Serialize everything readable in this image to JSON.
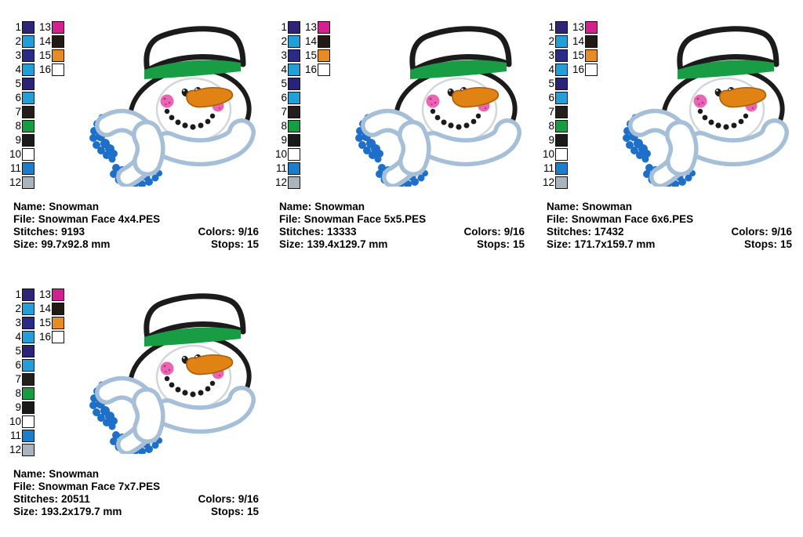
{
  "labels": {
    "name": "Name:",
    "file": "File:",
    "stitches": "Stitches:",
    "colors": "Colors:",
    "size": "Size:",
    "stops": "Stops:"
  },
  "palette": {
    "items": [
      {
        "num": "1",
        "color": "#2e2478"
      },
      {
        "num": "2",
        "color": "#219fd9"
      },
      {
        "num": "3",
        "color": "#2a2a87"
      },
      {
        "num": "4",
        "color": "#219fd9"
      },
      {
        "num": "5",
        "color": "#2b2377"
      },
      {
        "num": "6",
        "color": "#219fd9"
      },
      {
        "num": "7",
        "color": "#241f1a"
      },
      {
        "num": "8",
        "color": "#169c41"
      },
      {
        "num": "9",
        "color": "#1a1a1a"
      },
      {
        "num": "10",
        "color": "#ffffff"
      },
      {
        "num": "11",
        "color": "#1b7ecc"
      },
      {
        "num": "12",
        "color": "#a9b4bd"
      },
      {
        "num": "13",
        "color": "#d32090"
      },
      {
        "num": "14",
        "color": "#221a14"
      },
      {
        "num": "15",
        "color": "#e78c23"
      },
      {
        "num": "16",
        "color": "#ffffff"
      }
    ]
  },
  "designs": [
    {
      "name": "Snowman",
      "file": "Snowman Face 4x4.PES",
      "stitches": "9193",
      "colors": "9/16",
      "size": "99.7x92.8 mm",
      "stops": "15"
    },
    {
      "name": "Snowman",
      "file": "Snowman Face 5x5.PES",
      "stitches": "13333",
      "colors": "9/16",
      "size": "139.4x129.7 mm",
      "stops": "15"
    },
    {
      "name": "Snowman",
      "file": "Snowman Face 6x6.PES",
      "stitches": "17432",
      "colors": "9/16",
      "size": "171.7x159.7 mm",
      "stops": "15"
    },
    {
      "name": "Snowman",
      "file": "Snowman Face 7x7.PES",
      "stitches": "20511",
      "colors": "9/16",
      "size": "193.2x179.7 mm",
      "stops": "15"
    }
  ],
  "artwork_colors": {
    "outline": "#1b1b1b",
    "band": "#189c44",
    "ring": "#d3d7db",
    "cheek": "#e767b3",
    "cheek_dot": "#c2258d",
    "nose": "#e08314",
    "nose_outline": "#a85e0a",
    "scarf_outline": "#a6bfd8",
    "fringe": "#1d6fc9"
  }
}
